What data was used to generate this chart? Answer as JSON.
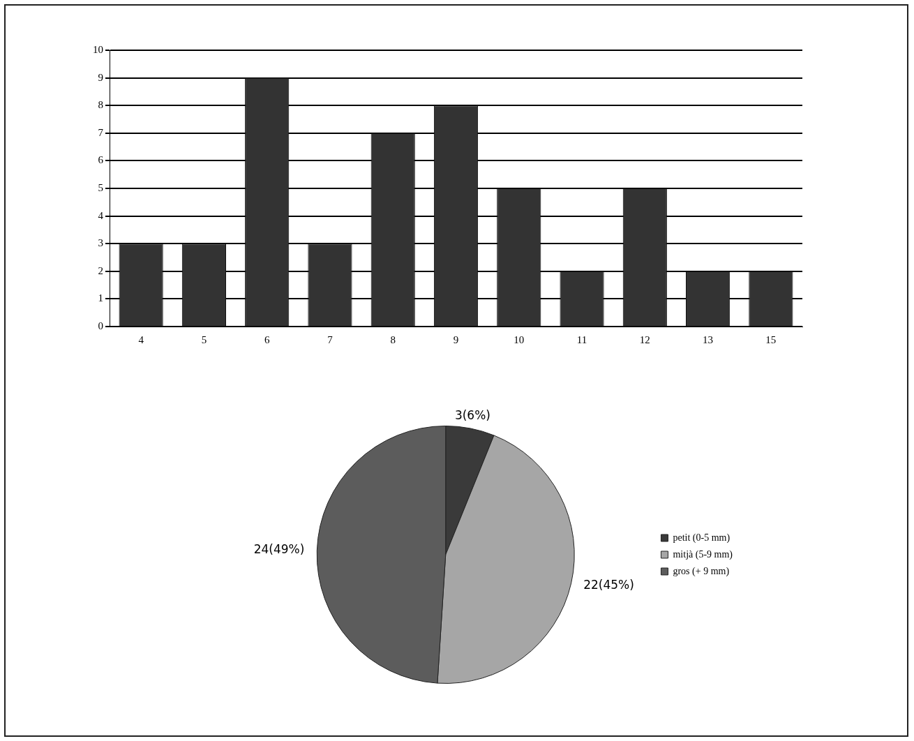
{
  "chart_data": [
    {
      "type": "bar",
      "categories": [
        "4",
        "5",
        "6",
        "7",
        "8",
        "9",
        "10",
        "11",
        "12",
        "13",
        "15"
      ],
      "values": [
        3,
        3,
        9,
        3,
        7,
        8,
        5,
        2,
        5,
        2,
        2
      ],
      "color": "#333333",
      "ylim": [
        0,
        10
      ],
      "yticks": [
        0,
        1,
        2,
        3,
        4,
        5,
        6,
        7,
        8,
        9,
        10
      ],
      "grid": "y",
      "legend": false
    },
    {
      "type": "pie",
      "categories": [
        "petit (0-5 mm)",
        "mitjà (5-9 mm)",
        "gros (+ 9 mm)"
      ],
      "values": [
        3,
        22,
        24
      ],
      "value_labels": [
        "3(6%)",
        "22(45%)",
        "24(49%)"
      ],
      "colors": [
        "#3a3a3a",
        "#a6a6a6",
        "#5c5c5c"
      ],
      "legend": "right"
    }
  ]
}
